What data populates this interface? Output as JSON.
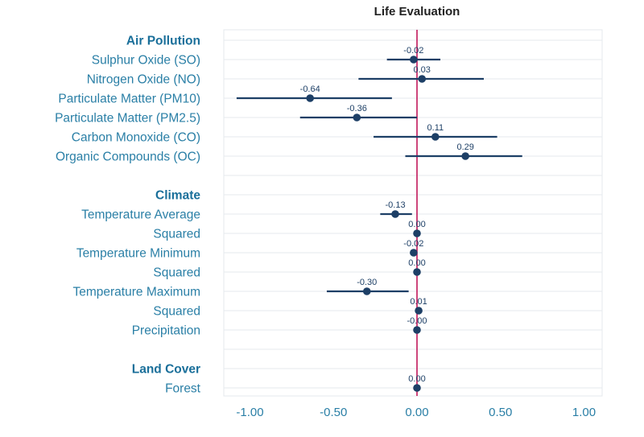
{
  "chart_data": {
    "type": "forest",
    "title": "Life Evaluation",
    "xlim": [
      -1.1,
      1.1
    ],
    "xticks": [
      -1.0,
      -0.5,
      0.0,
      0.5,
      1.0
    ],
    "xtick_labels": [
      "-1.00",
      "-0.50",
      "0.00",
      "0.50",
      "1.00"
    ],
    "reference_line": 0.0,
    "colors": {
      "point": "#1d3f66",
      "reference": "#c2185b",
      "category_text": "#2a7fa6",
      "header_text": "#1a6f9a"
    },
    "groups": [
      {
        "header": "Air Pollution",
        "items": [
          {
            "label": "Sulphur Oxide (SO)",
            "estimate": -0.02,
            "ci_low": -0.18,
            "ci_high": 0.14,
            "value_label": "-0.02"
          },
          {
            "label": "Nitrogen Oxide (NO)",
            "estimate": 0.03,
            "ci_low": -0.35,
            "ci_high": 0.4,
            "value_label": "0.03"
          },
          {
            "label": "Particulate Matter (PM10)",
            "estimate": -0.64,
            "ci_low": -1.08,
            "ci_high": -0.15,
            "value_label": "-0.64"
          },
          {
            "label": "Particulate Matter (PM2.5)",
            "estimate": -0.36,
            "ci_low": -0.7,
            "ci_high": 0.0,
            "value_label": "-0.36"
          },
          {
            "label": "Carbon Monoxide (CO)",
            "estimate": 0.11,
            "ci_low": -0.26,
            "ci_high": 0.48,
            "value_label": "0.11"
          },
          {
            "label": "Organic Compounds (OC)",
            "estimate": 0.29,
            "ci_low": -0.07,
            "ci_high": 0.63,
            "value_label": "0.29"
          }
        ]
      },
      {
        "header": "Climate",
        "items": [
          {
            "label": "Temperature Average",
            "estimate": -0.13,
            "ci_low": -0.22,
            "ci_high": -0.03,
            "value_label": "-0.13"
          },
          {
            "label": "Squared",
            "estimate": 0.0,
            "ci_low": 0.0,
            "ci_high": 0.0,
            "value_label": "0.00"
          },
          {
            "label": "Temperature Minimum",
            "estimate": -0.02,
            "ci_low": -0.04,
            "ci_high": 0.0,
            "value_label": "-0.02"
          },
          {
            "label": "Squared",
            "estimate": 0.0,
            "ci_low": 0.0,
            "ci_high": 0.0,
            "value_label": "0.00"
          },
          {
            "label": "Temperature Maximum",
            "estimate": -0.3,
            "ci_low": -0.54,
            "ci_high": -0.05,
            "value_label": "-0.30"
          },
          {
            "label": "Squared",
            "estimate": 0.01,
            "ci_low": 0.0,
            "ci_high": 0.01,
            "value_label": "0.01"
          },
          {
            "label": "Precipitation",
            "estimate": 0.0,
            "ci_low": 0.0,
            "ci_high": 0.0,
            "value_label": "-0.00"
          }
        ]
      },
      {
        "header": "Land Cover",
        "items": [
          {
            "label": "Forest",
            "estimate": 0.0,
            "ci_low": 0.0,
            "ci_high": 0.0,
            "value_label": "0.00"
          }
        ]
      }
    ]
  }
}
